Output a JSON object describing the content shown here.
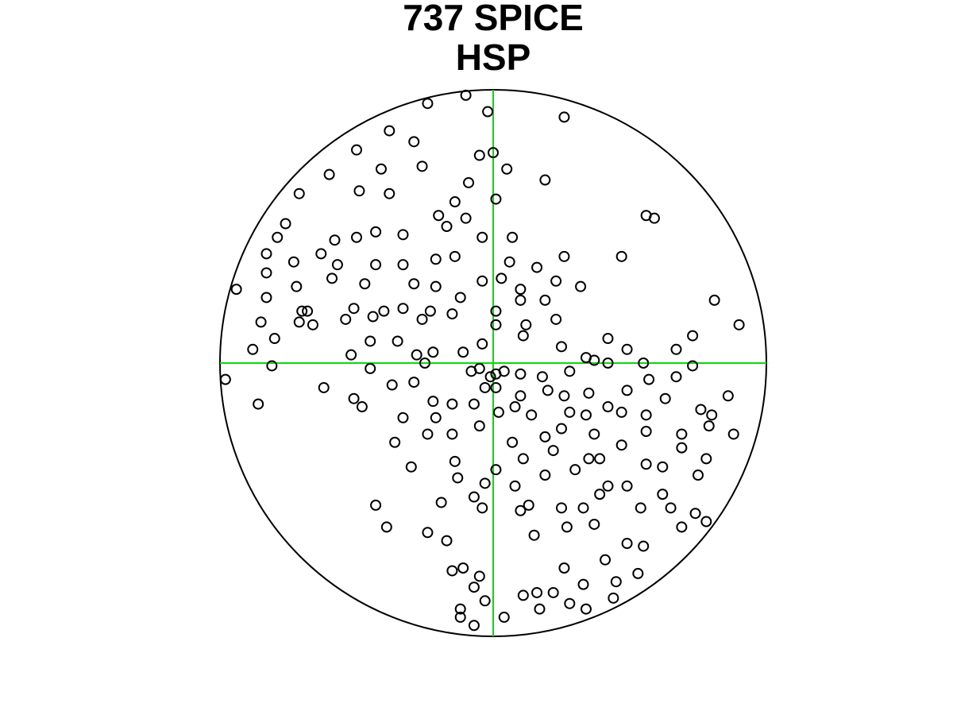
{
  "chart_data": {
    "type": "scatter",
    "title_lines": [
      "737 SPICE",
      "HSP"
    ],
    "xlim": [
      -1,
      1
    ],
    "ylim": [
      -1,
      1
    ],
    "color": "#000000",
    "crosshair_color": "#00e000",
    "x": [
      -0.24,
      -0.1,
      -0.02,
      0.26,
      -0.38,
      -0.29,
      -0.05,
      0.0,
      0.05,
      0.19,
      -0.5,
      -0.6,
      -0.71,
      -0.49,
      -0.26,
      -0.41,
      -0.38,
      -0.09,
      0.01,
      -0.14,
      -0.2,
      -0.1,
      0.56,
      0.59,
      -0.76,
      -0.79,
      -0.83,
      -0.58,
      -0.5,
      -0.43,
      -0.33,
      -0.17,
      -0.04,
      0.07,
      0.26,
      0.47,
      -0.73,
      -0.63,
      -0.57,
      -0.43,
      -0.33,
      -0.21,
      -0.14,
      0.06,
      0.16,
      -0.94,
      -0.83,
      -0.72,
      -0.59,
      -0.47,
      -0.29,
      -0.21,
      -0.04,
      0.03,
      0.1,
      0.23,
      0.32,
      -0.83,
      -0.7,
      -0.68,
      -0.51,
      -0.4,
      -0.33,
      -0.23,
      -0.12,
      0.01,
      0.1,
      0.19,
      0.81,
      -0.85,
      -0.71,
      -0.66,
      -0.54,
      -0.44,
      -0.26,
      -0.15,
      0.01,
      0.12,
      0.23,
      0.9,
      -0.88,
      -0.8,
      -0.52,
      -0.45,
      -0.35,
      -0.28,
      -0.22,
      -0.11,
      -0.04,
      0.11,
      0.25,
      0.34,
      0.42,
      0.49,
      0.67,
      0.73,
      -0.98,
      -0.81,
      -0.62,
      -0.45,
      -0.37,
      -0.29,
      -0.25,
      -0.08,
      -0.05,
      -0.01,
      0.01,
      0.04,
      -0.03,
      0.01,
      0.1,
      0.18,
      0.28,
      0.37,
      0.42,
      0.55,
      0.73,
      -0.86,
      -0.51,
      -0.48,
      -0.22,
      -0.15,
      -0.07,
      0.02,
      0.08,
      0.1,
      0.2,
      0.26,
      0.35,
      0.42,
      0.49,
      0.57,
      0.67,
      0.86,
      -0.33,
      -0.21,
      -0.05,
      0.14,
      0.28,
      0.34,
      0.47,
      0.56,
      0.63,
      0.76,
      0.8,
      -0.36,
      -0.24,
      -0.15,
      0.07,
      0.19,
      0.25,
      0.37,
      0.47,
      0.56,
      0.69,
      0.79,
      0.88,
      -0.14,
      -0.3,
      0.11,
      0.22,
      0.35,
      0.39,
      0.56,
      0.62,
      0.69,
      0.78,
      -0.19,
      -0.13,
      -0.03,
      0.01,
      0.08,
      0.19,
      0.3,
      0.42,
      0.49,
      0.62,
      0.75,
      -0.43,
      -0.39,
      -0.07,
      -0.04,
      0.1,
      0.13,
      0.25,
      0.33,
      0.39,
      0.54,
      0.65,
      0.74,
      -0.24,
      -0.17,
      0.15,
      0.27,
      0.37,
      0.49,
      0.55,
      0.69,
      0.78,
      -0.15,
      -0.11,
      -0.05,
      0.26,
      0.41,
      0.53,
      -0.07,
      -0.03,
      0.11,
      0.16,
      0.22,
      0.33,
      0.45,
      -0.12,
      -0.12,
      -0.07,
      0.04,
      0.17,
      0.28,
      0.34,
      0.44
    ],
    "values": [
      0.95,
      0.98,
      0.92,
      0.9,
      0.85,
      0.81,
      0.76,
      0.77,
      0.71,
      0.67,
      0.78,
      0.69,
      0.62,
      0.63,
      0.72,
      0.71,
      0.62,
      0.66,
      0.6,
      0.59,
      0.54,
      0.53,
      0.54,
      0.53,
      0.51,
      0.46,
      0.4,
      0.45,
      0.46,
      0.48,
      0.47,
      0.5,
      0.46,
      0.46,
      0.39,
      0.39,
      0.37,
      0.4,
      0.36,
      0.36,
      0.36,
      0.38,
      0.39,
      0.37,
      0.35,
      0.27,
      0.33,
      0.28,
      0.31,
      0.29,
      0.29,
      0.28,
      0.3,
      0.31,
      0.27,
      0.3,
      0.28,
      0.24,
      0.19,
      0.19,
      0.2,
      0.19,
      0.2,
      0.19,
      0.24,
      0.19,
      0.23,
      0.23,
      0.23,
      0.15,
      0.15,
      0.14,
      0.16,
      0.17,
      0.16,
      0.18,
      0.14,
      0.14,
      0.16,
      0.14,
      0.05,
      0.09,
      0.03,
      0.08,
      0.08,
      0.03,
      0.04,
      0.04,
      0.07,
      0.1,
      0.06,
      0.02,
      0.09,
      0.05,
      0.05,
      0.1,
      -0.06,
      -0.01,
      -0.09,
      -0.02,
      -0.08,
      -0.07,
      0.0,
      -0.03,
      -0.02,
      -0.05,
      -0.04,
      -0.03,
      -0.09,
      -0.09,
      -0.04,
      -0.05,
      -0.03,
      0.01,
      0.0,
      0.0,
      -0.01,
      -0.15,
      -0.13,
      -0.16,
      -0.14,
      -0.15,
      -0.15,
      -0.18,
      -0.16,
      -0.12,
      -0.1,
      -0.12,
      -0.11,
      -0.16,
      -0.1,
      -0.06,
      -0.05,
      -0.12,
      -0.2,
      -0.2,
      -0.23,
      -0.19,
      -0.18,
      -0.19,
      -0.18,
      -0.19,
      -0.13,
      -0.17,
      -0.19,
      -0.29,
      -0.26,
      -0.26,
      -0.29,
      -0.27,
      -0.24,
      -0.26,
      -0.3,
      -0.25,
      -0.26,
      -0.23,
      -0.26,
      -0.36,
      -0.38,
      -0.35,
      -0.32,
      -0.35,
      -0.35,
      -0.37,
      -0.38,
      -0.31,
      -0.35,
      -0.51,
      -0.42,
      -0.44,
      -0.39,
      -0.45,
      -0.41,
      -0.39,
      -0.45,
      -0.45,
      -0.48,
      -0.41,
      -0.52,
      -0.6,
      -0.49,
      -0.53,
      -0.54,
      -0.52,
      -0.53,
      -0.53,
      -0.48,
      -0.53,
      -0.53,
      -0.55,
      -0.62,
      -0.65,
      -0.63,
      -0.6,
      -0.59,
      -0.66,
      -0.67,
      -0.6,
      -0.58,
      -0.76,
      -0.75,
      -0.78,
      -0.75,
      -0.72,
      -0.77,
      -0.82,
      -0.87,
      -0.85,
      -0.84,
      -0.84,
      -0.81,
      -0.8,
      -0.9,
      -0.93,
      -0.96,
      -0.93,
      -0.9,
      -0.88,
      -0.9,
      -0.86
    ]
  }
}
